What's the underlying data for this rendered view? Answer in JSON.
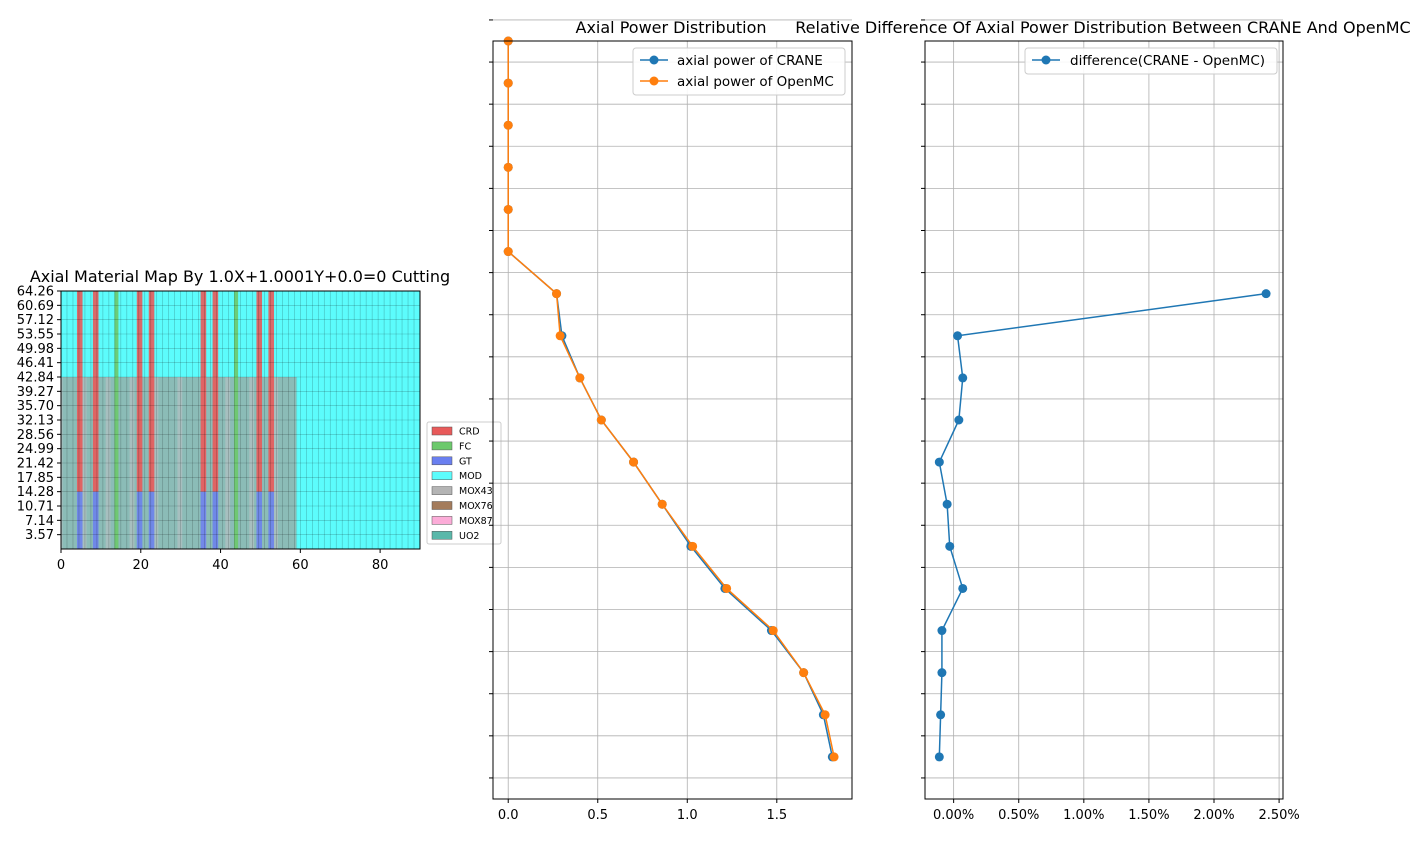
{
  "chart_data": [
    {
      "type": "heatmap",
      "title": "Axial Material Map By 1.0X+1.0001Y+0.0=0 Cutting",
      "xlim": [
        0,
        90
      ],
      "ylim": [
        0,
        64.26
      ],
      "xticks": [
        "0",
        "20",
        "40",
        "60",
        "80"
      ],
      "yticks": [
        "3.57",
        "7.14",
        "10.71",
        "14.28",
        "17.85",
        "21.42",
        "24.99",
        "28.56",
        "32.13",
        "35.70",
        "39.27",
        "42.84",
        "46.41",
        "49.98",
        "53.55",
        "57.12",
        "60.69",
        "64.26"
      ],
      "legend_placement": "right",
      "legend": [
        {
          "name": "CRD",
          "color": "#e85a5a"
        },
        {
          "name": "FC",
          "color": "#6cc96c"
        },
        {
          "name": "GT",
          "color": "#6a7ff0"
        },
        {
          "name": "MOD",
          "color": "#5cfcfc"
        },
        {
          "name": "MOX43",
          "color": "#b4b4b4"
        },
        {
          "name": "MOX76",
          "color": "#a47c5c"
        },
        {
          "name": "MOX87",
          "color": "#fcacd8"
        },
        {
          "name": "UO2",
          "color": "#5ab8aa"
        }
      ]
    },
    {
      "type": "line",
      "title": "Axial Power Distribution",
      "xlim": [
        -0.085,
        1.92
      ],
      "ylim": [
        0,
        18
      ],
      "xticks": [
        "0.0",
        "0.5",
        "1.0",
        "1.5"
      ],
      "grid": true,
      "legend_placement": "top-right",
      "y": [
        1,
        2,
        3,
        4,
        5,
        6,
        7,
        8,
        9,
        10,
        11,
        12,
        13,
        14,
        15,
        16,
        17,
        18
      ],
      "series": [
        {
          "name": "axial power of CRANE",
          "color": "#1f77b4",
          "values": [
            1.81,
            1.76,
            1.65,
            1.47,
            1.21,
            1.02,
            0.86,
            0.7,
            0.52,
            0.4,
            0.3,
            0.27,
            0.0,
            0.0,
            0.0,
            0.0,
            0.0,
            0.0
          ]
        },
        {
          "name": "axial power of OpenMC",
          "color": "#ff7f0e",
          "values": [
            1.82,
            1.77,
            1.65,
            1.48,
            1.22,
            1.03,
            0.86,
            0.7,
            0.52,
            0.4,
            0.29,
            0.27,
            0.0,
            0.0,
            0.0,
            0.0,
            0.0,
            0.0
          ]
        }
      ]
    },
    {
      "type": "line",
      "title": "Relative Difference Of Axial Power Distribution Between CRANE And OpenMC",
      "xlim": [
        -0.22,
        2.53
      ],
      "ylim": [
        0,
        18
      ],
      "xticks": [
        "0.00%",
        "0.50%",
        "1.00%",
        "1.50%",
        "2.00%",
        "2.50%"
      ],
      "grid": true,
      "legend_placement": "top-right",
      "y": [
        1,
        2,
        3,
        4,
        5,
        6,
        7,
        8,
        9,
        10,
        11,
        12
      ],
      "series": [
        {
          "name": "difference(CRANE - OpenMC)",
          "color": "#1f77b4",
          "values": [
            -0.11,
            -0.1,
            -0.09,
            -0.09,
            0.07,
            -0.03,
            -0.05,
            -0.11,
            0.04,
            0.07,
            0.03,
            2.4
          ]
        }
      ]
    }
  ]
}
